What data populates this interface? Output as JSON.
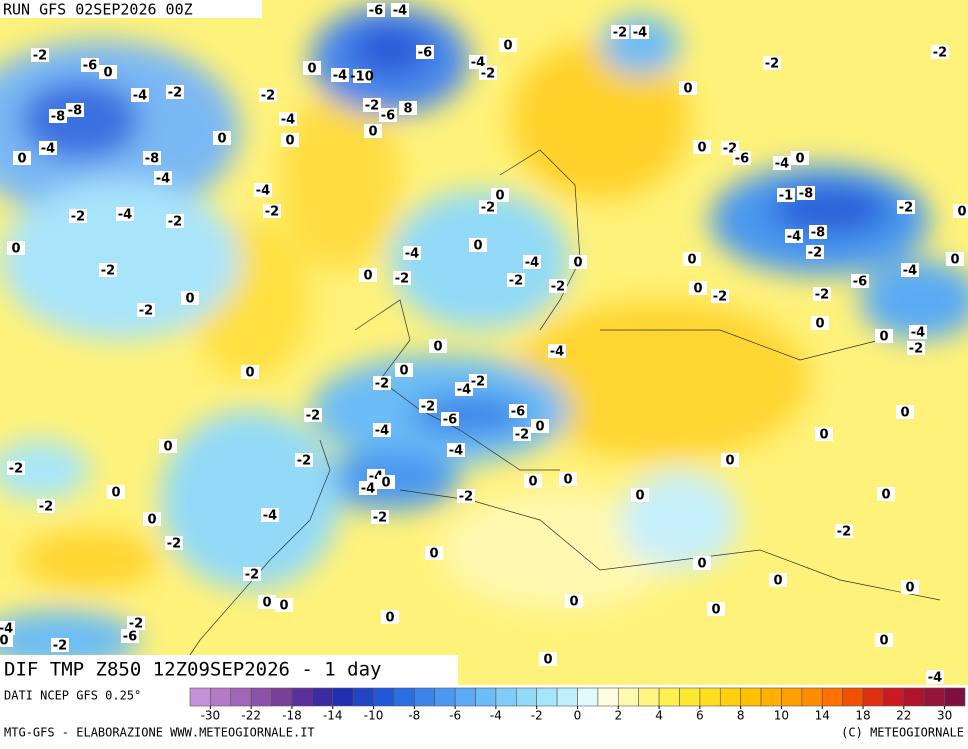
{
  "header": {
    "run": "RUN GFS 02SEP2026 00Z"
  },
  "map": {
    "title": "DIF TMP Z850 12Z09SEP2026 - 1 day",
    "contour_labels": [
      -2,
      -6,
      0,
      -4,
      -2,
      -8,
      -8,
      -4,
      0,
      -8,
      -4,
      0,
      -2,
      -4,
      0,
      -4,
      -2,
      -2,
      -4,
      -2,
      0,
      -2,
      -2,
      0,
      -6,
      -4,
      -6,
      -4,
      -10,
      -2,
      -6,
      8,
      0,
      0,
      -4,
      -2,
      0,
      -2,
      -4,
      0,
      -2,
      -2,
      0,
      -2,
      -6,
      -4,
      0,
      -1,
      -8,
      -2,
      0,
      -4,
      -8,
      -2,
      0,
      0,
      -2,
      -2,
      -6,
      -4,
      0,
      -4,
      -2,
      0,
      0,
      -4,
      -2,
      0,
      -2,
      0,
      0,
      -4,
      -2,
      -2,
      0,
      -4,
      0,
      0,
      -2,
      -4,
      -2,
      -2,
      -6,
      -6,
      0,
      -2,
      -4,
      -4,
      -2,
      -2,
      -4,
      -4,
      0,
      -2,
      -2,
      -4,
      0,
      0,
      -2,
      0,
      -2,
      0,
      -2,
      -2,
      0,
      0,
      0,
      0,
      0,
      0,
      0,
      0,
      0,
      0,
      -2,
      0,
      0,
      0,
      0,
      0,
      0,
      0,
      0,
      -4,
      -2,
      -6,
      -2,
      -4,
      0
    ]
  },
  "legend": {
    "labels": [
      -30,
      -22,
      -18,
      -14,
      -10,
      -8,
      -6,
      -4,
      -2,
      0,
      2,
      4,
      6,
      8,
      10,
      14,
      18,
      22,
      30
    ],
    "colors": [
      "#c78fd9",
      "#b47ac8",
      "#a066b8",
      "#8c52a8",
      "#7a4098",
      "#5a2f9a",
      "#3c2ca0",
      "#2030b0",
      "#1f45c4",
      "#2058d6",
      "#2a6ee0",
      "#3a84ea",
      "#4a98f0",
      "#5aaaf4",
      "#6cbcf6",
      "#80ccf8",
      "#92daf8",
      "#a6e6fa",
      "#c0f0fb",
      "#e0fafd",
      "#fffde0",
      "#fffab0",
      "#fff580",
      "#fff050",
      "#ffe830",
      "#ffde20",
      "#ffd010",
      "#ffc000",
      "#ffb000",
      "#ffa000",
      "#ff8c00",
      "#ff7000",
      "#f05000",
      "#e03010",
      "#cc1a20",
      "#b0142c",
      "#961438",
      "#7c1040"
    ]
  },
  "footer": {
    "source": "DATI NCEP GFS 0.25°",
    "credit": "MTG-GFS - ELABORAZIONE WWW.METEOGIORNALE.IT",
    "copyright": "(C) METEOGIORNALE"
  }
}
